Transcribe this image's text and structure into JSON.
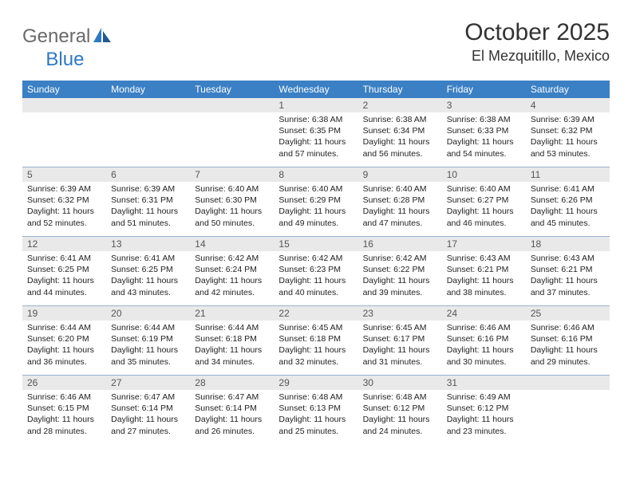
{
  "logo": {
    "text1": "General",
    "text2": "Blue"
  },
  "title": "October 2025",
  "location": "El Mezquitillo, Mexico",
  "colors": {
    "header_bg": "#3b80c4",
    "header_text": "#ffffff",
    "daynum_bg": "#e9e9e9",
    "daynum_text": "#555555",
    "divider": "#9ab4cf",
    "body_text": "#222222",
    "logo_gray": "#6a6a6a",
    "logo_blue": "#2f78c4"
  },
  "dow": [
    "Sunday",
    "Monday",
    "Tuesday",
    "Wednesday",
    "Thursday",
    "Friday",
    "Saturday"
  ],
  "weeks": [
    [
      {},
      {},
      {},
      {
        "n": "1",
        "sunrise": "Sunrise: 6:38 AM",
        "sunset": "Sunset: 6:35 PM",
        "day": "Daylight: 11 hours and 57 minutes."
      },
      {
        "n": "2",
        "sunrise": "Sunrise: 6:38 AM",
        "sunset": "Sunset: 6:34 PM",
        "day": "Daylight: 11 hours and 56 minutes."
      },
      {
        "n": "3",
        "sunrise": "Sunrise: 6:38 AM",
        "sunset": "Sunset: 6:33 PM",
        "day": "Daylight: 11 hours and 54 minutes."
      },
      {
        "n": "4",
        "sunrise": "Sunrise: 6:39 AM",
        "sunset": "Sunset: 6:32 PM",
        "day": "Daylight: 11 hours and 53 minutes."
      }
    ],
    [
      {
        "n": "5",
        "sunrise": "Sunrise: 6:39 AM",
        "sunset": "Sunset: 6:32 PM",
        "day": "Daylight: 11 hours and 52 minutes."
      },
      {
        "n": "6",
        "sunrise": "Sunrise: 6:39 AM",
        "sunset": "Sunset: 6:31 PM",
        "day": "Daylight: 11 hours and 51 minutes."
      },
      {
        "n": "7",
        "sunrise": "Sunrise: 6:40 AM",
        "sunset": "Sunset: 6:30 PM",
        "day": "Daylight: 11 hours and 50 minutes."
      },
      {
        "n": "8",
        "sunrise": "Sunrise: 6:40 AM",
        "sunset": "Sunset: 6:29 PM",
        "day": "Daylight: 11 hours and 49 minutes."
      },
      {
        "n": "9",
        "sunrise": "Sunrise: 6:40 AM",
        "sunset": "Sunset: 6:28 PM",
        "day": "Daylight: 11 hours and 47 minutes."
      },
      {
        "n": "10",
        "sunrise": "Sunrise: 6:40 AM",
        "sunset": "Sunset: 6:27 PM",
        "day": "Daylight: 11 hours and 46 minutes."
      },
      {
        "n": "11",
        "sunrise": "Sunrise: 6:41 AM",
        "sunset": "Sunset: 6:26 PM",
        "day": "Daylight: 11 hours and 45 minutes."
      }
    ],
    [
      {
        "n": "12",
        "sunrise": "Sunrise: 6:41 AM",
        "sunset": "Sunset: 6:25 PM",
        "day": "Daylight: 11 hours and 44 minutes."
      },
      {
        "n": "13",
        "sunrise": "Sunrise: 6:41 AM",
        "sunset": "Sunset: 6:25 PM",
        "day": "Daylight: 11 hours and 43 minutes."
      },
      {
        "n": "14",
        "sunrise": "Sunrise: 6:42 AM",
        "sunset": "Sunset: 6:24 PM",
        "day": "Daylight: 11 hours and 42 minutes."
      },
      {
        "n": "15",
        "sunrise": "Sunrise: 6:42 AM",
        "sunset": "Sunset: 6:23 PM",
        "day": "Daylight: 11 hours and 40 minutes."
      },
      {
        "n": "16",
        "sunrise": "Sunrise: 6:42 AM",
        "sunset": "Sunset: 6:22 PM",
        "day": "Daylight: 11 hours and 39 minutes."
      },
      {
        "n": "17",
        "sunrise": "Sunrise: 6:43 AM",
        "sunset": "Sunset: 6:21 PM",
        "day": "Daylight: 11 hours and 38 minutes."
      },
      {
        "n": "18",
        "sunrise": "Sunrise: 6:43 AM",
        "sunset": "Sunset: 6:21 PM",
        "day": "Daylight: 11 hours and 37 minutes."
      }
    ],
    [
      {
        "n": "19",
        "sunrise": "Sunrise: 6:44 AM",
        "sunset": "Sunset: 6:20 PM",
        "day": "Daylight: 11 hours and 36 minutes."
      },
      {
        "n": "20",
        "sunrise": "Sunrise: 6:44 AM",
        "sunset": "Sunset: 6:19 PM",
        "day": "Daylight: 11 hours and 35 minutes."
      },
      {
        "n": "21",
        "sunrise": "Sunrise: 6:44 AM",
        "sunset": "Sunset: 6:18 PM",
        "day": "Daylight: 11 hours and 34 minutes."
      },
      {
        "n": "22",
        "sunrise": "Sunrise: 6:45 AM",
        "sunset": "Sunset: 6:18 PM",
        "day": "Daylight: 11 hours and 32 minutes."
      },
      {
        "n": "23",
        "sunrise": "Sunrise: 6:45 AM",
        "sunset": "Sunset: 6:17 PM",
        "day": "Daylight: 11 hours and 31 minutes."
      },
      {
        "n": "24",
        "sunrise": "Sunrise: 6:46 AM",
        "sunset": "Sunset: 6:16 PM",
        "day": "Daylight: 11 hours and 30 minutes."
      },
      {
        "n": "25",
        "sunrise": "Sunrise: 6:46 AM",
        "sunset": "Sunset: 6:16 PM",
        "day": "Daylight: 11 hours and 29 minutes."
      }
    ],
    [
      {
        "n": "26",
        "sunrise": "Sunrise: 6:46 AM",
        "sunset": "Sunset: 6:15 PM",
        "day": "Daylight: 11 hours and 28 minutes."
      },
      {
        "n": "27",
        "sunrise": "Sunrise: 6:47 AM",
        "sunset": "Sunset: 6:14 PM",
        "day": "Daylight: 11 hours and 27 minutes."
      },
      {
        "n": "28",
        "sunrise": "Sunrise: 6:47 AM",
        "sunset": "Sunset: 6:14 PM",
        "day": "Daylight: 11 hours and 26 minutes."
      },
      {
        "n": "29",
        "sunrise": "Sunrise: 6:48 AM",
        "sunset": "Sunset: 6:13 PM",
        "day": "Daylight: 11 hours and 25 minutes."
      },
      {
        "n": "30",
        "sunrise": "Sunrise: 6:48 AM",
        "sunset": "Sunset: 6:12 PM",
        "day": "Daylight: 11 hours and 24 minutes."
      },
      {
        "n": "31",
        "sunrise": "Sunrise: 6:49 AM",
        "sunset": "Sunset: 6:12 PM",
        "day": "Daylight: 11 hours and 23 minutes."
      },
      {}
    ]
  ]
}
